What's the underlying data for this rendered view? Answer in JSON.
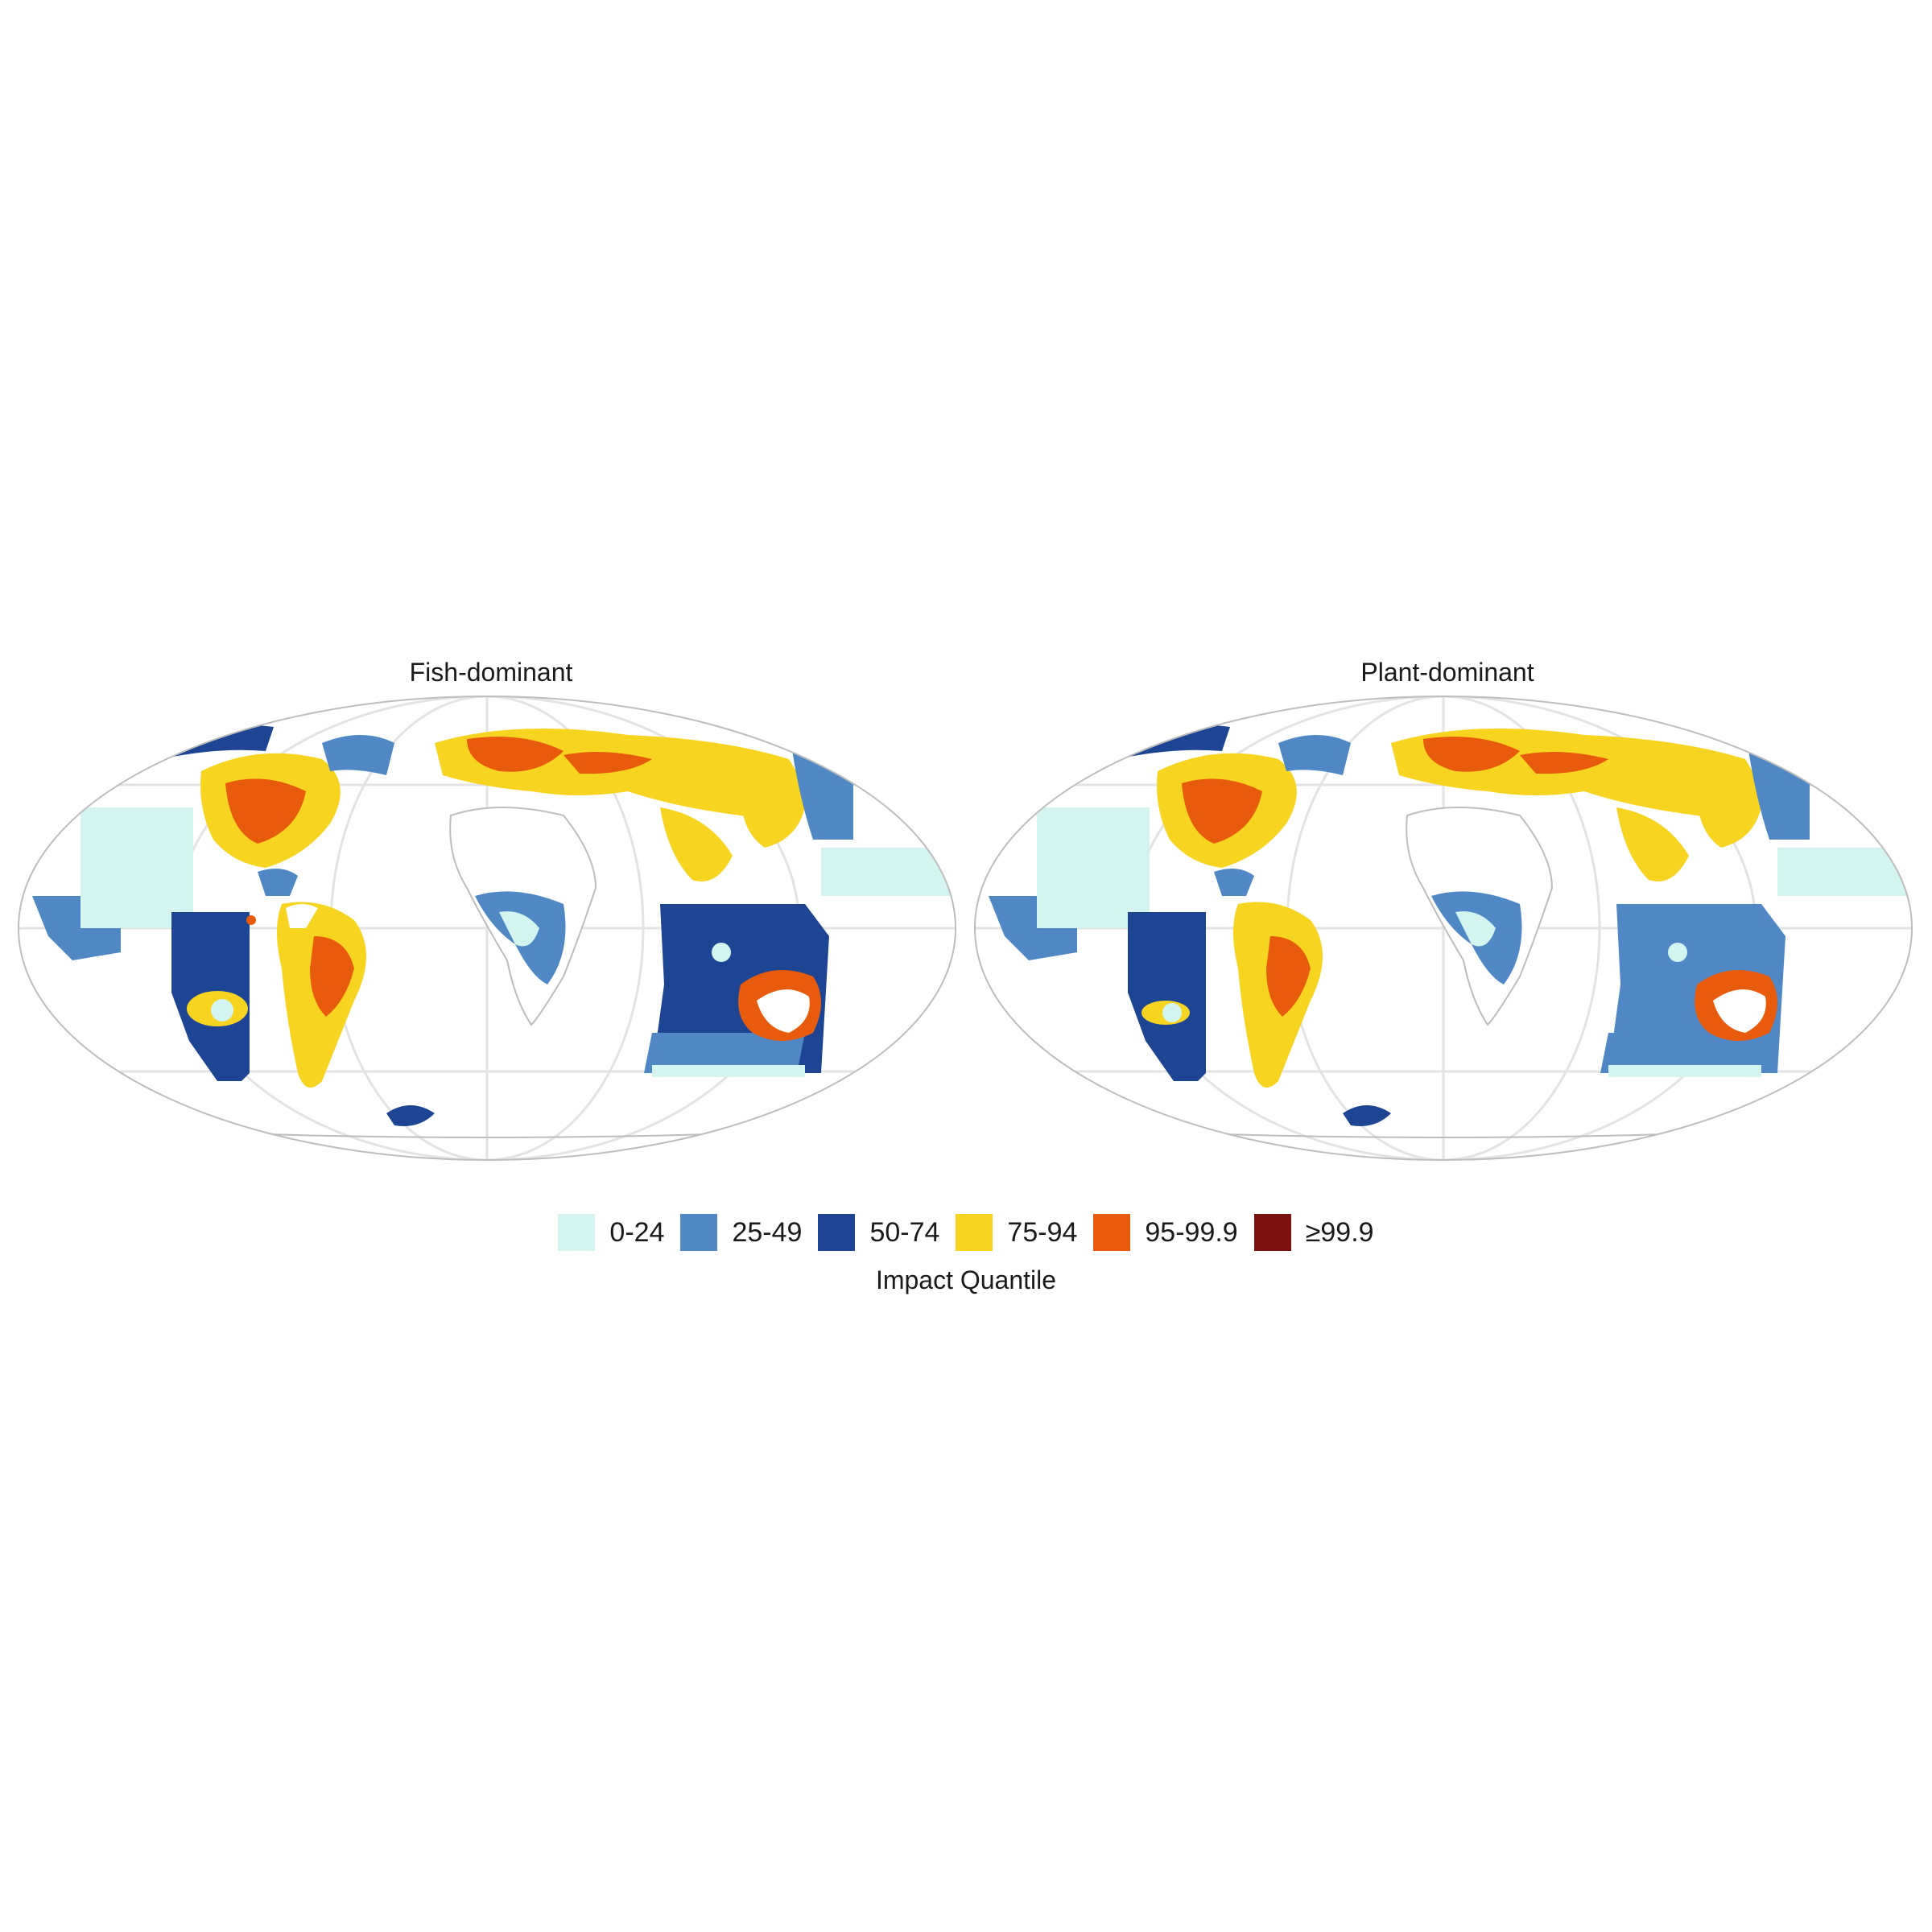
{
  "panels": [
    {
      "title": "Fish-dominant"
    },
    {
      "title": "Plant-dominant"
    }
  ],
  "legend": {
    "title": "Impact Quantile",
    "items": [
      {
        "label": "0-24",
        "color": "#d4f5ef"
      },
      {
        "label": "25-49",
        "color": "#5088c5"
      },
      {
        "label": "50-74",
        "color": "#1e4494"
      },
      {
        "label": "75-94",
        "color": "#f7d420"
      },
      {
        "label": "95-99.9",
        "color": "#e85a0c"
      },
      {
        "label": "≥99.9",
        "color": "#7c1111"
      }
    ]
  },
  "map": {
    "projection": "Mollweide",
    "graticule_color": "#e3e3e3",
    "outline_color": "#bdbdbd",
    "background": "#ffffff"
  }
}
